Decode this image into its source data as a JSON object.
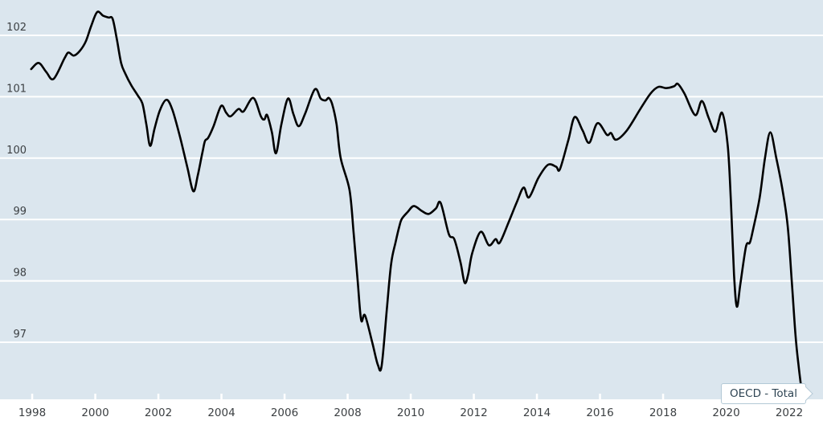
{
  "chart": {
    "colors": {
      "plot_background": "#dbe6ee",
      "outer_background": "#ffffff",
      "gridline": "#ffffff",
      "line": "#000000",
      "axis_text": "#3c4043",
      "callout_border": "#b3c9d6",
      "callout_background": "#ffffff",
      "callout_text": "#2e4453"
    }
  },
  "chart_data": {
    "type": "line",
    "title": "",
    "xlabel": "",
    "ylabel": "",
    "grid": true,
    "legend_position": "callout-bottom-right",
    "x_ticks": [
      1998,
      2000,
      2002,
      2004,
      2006,
      2008,
      2010,
      2012,
      2014,
      2016,
      2018,
      2020,
      2022
    ],
    "y_ticks": [
      97,
      98,
      99,
      100,
      101,
      102
    ],
    "x_range": [
      1996.98,
      2023.07
    ],
    "y_range": [
      96.07,
      102.58
    ],
    "series": [
      {
        "name": "OECD - Total",
        "points": [
          [
            1997.97,
            101.45
          ],
          [
            1998.21,
            101.55
          ],
          [
            1998.45,
            101.4
          ],
          [
            1998.68,
            101.29
          ],
          [
            1999.02,
            101.62
          ],
          [
            1999.15,
            101.72
          ],
          [
            1999.32,
            101.67
          ],
          [
            1999.5,
            101.74
          ],
          [
            1999.7,
            101.9
          ],
          [
            1999.87,
            102.15
          ],
          [
            2000.06,
            102.38
          ],
          [
            2000.25,
            102.32
          ],
          [
            2000.42,
            102.29
          ],
          [
            2000.55,
            102.27
          ],
          [
            2000.68,
            101.95
          ],
          [
            2000.82,
            101.55
          ],
          [
            2000.95,
            101.38
          ],
          [
            2001.15,
            101.18
          ],
          [
            2001.35,
            101.02
          ],
          [
            2001.5,
            100.88
          ],
          [
            2001.62,
            100.55
          ],
          [
            2001.74,
            100.2
          ],
          [
            2001.88,
            100.48
          ],
          [
            2002.05,
            100.78
          ],
          [
            2002.26,
            100.95
          ],
          [
            2002.45,
            100.78
          ],
          [
            2002.7,
            100.32
          ],
          [
            2002.92,
            99.85
          ],
          [
            2003.11,
            99.46
          ],
          [
            2003.25,
            99.72
          ],
          [
            2003.4,
            100.1
          ],
          [
            2003.48,
            100.28
          ],
          [
            2003.58,
            100.33
          ],
          [
            2003.75,
            100.52
          ],
          [
            2003.99,
            100.85
          ],
          [
            2004.15,
            100.74
          ],
          [
            2004.29,
            100.68
          ],
          [
            2004.54,
            100.8
          ],
          [
            2004.7,
            100.76
          ],
          [
            2005.01,
            100.98
          ],
          [
            2005.25,
            100.68
          ],
          [
            2005.36,
            100.63
          ],
          [
            2005.45,
            100.7
          ],
          [
            2005.6,
            100.42
          ],
          [
            2005.73,
            100.08
          ],
          [
            2005.9,
            100.55
          ],
          [
            2006.11,
            100.97
          ],
          [
            2006.28,
            100.72
          ],
          [
            2006.45,
            100.52
          ],
          [
            2006.65,
            100.72
          ],
          [
            2006.96,
            101.12
          ],
          [
            2007.15,
            100.97
          ],
          [
            2007.3,
            100.94
          ],
          [
            2007.4,
            100.98
          ],
          [
            2007.51,
            100.88
          ],
          [
            2007.65,
            100.55
          ],
          [
            2007.78,
            100.0
          ],
          [
            2008.06,
            99.48
          ],
          [
            2008.19,
            98.78
          ],
          [
            2008.32,
            97.99
          ],
          [
            2008.43,
            97.36
          ],
          [
            2008.55,
            97.44
          ],
          [
            2008.78,
            97.0
          ],
          [
            2008.96,
            96.63
          ],
          [
            2009.08,
            96.62
          ],
          [
            2009.25,
            97.58
          ],
          [
            2009.38,
            98.28
          ],
          [
            2009.52,
            98.63
          ],
          [
            2009.64,
            98.89
          ],
          [
            2009.72,
            99.01
          ],
          [
            2009.9,
            99.12
          ],
          [
            2010.1,
            99.22
          ],
          [
            2010.35,
            99.14
          ],
          [
            2010.57,
            99.09
          ],
          [
            2010.8,
            99.18
          ],
          [
            2010.95,
            99.27
          ],
          [
            2011.21,
            98.76
          ],
          [
            2011.38,
            98.68
          ],
          [
            2011.58,
            98.3
          ],
          [
            2011.71,
            97.97
          ],
          [
            2011.82,
            98.1
          ],
          [
            2011.95,
            98.45
          ],
          [
            2012.22,
            98.8
          ],
          [
            2012.48,
            98.58
          ],
          [
            2012.69,
            98.68
          ],
          [
            2012.82,
            98.62
          ],
          [
            2013.1,
            98.95
          ],
          [
            2013.37,
            99.29
          ],
          [
            2013.58,
            99.52
          ],
          [
            2013.75,
            99.36
          ],
          [
            2014.05,
            99.68
          ],
          [
            2014.35,
            99.89
          ],
          [
            2014.61,
            99.86
          ],
          [
            2014.73,
            99.82
          ],
          [
            2015.0,
            100.3
          ],
          [
            2015.2,
            100.67
          ],
          [
            2015.45,
            100.45
          ],
          [
            2015.66,
            100.25
          ],
          [
            2015.92,
            100.57
          ],
          [
            2016.22,
            100.38
          ],
          [
            2016.35,
            100.41
          ],
          [
            2016.51,
            100.3
          ],
          [
            2016.85,
            100.45
          ],
          [
            2017.28,
            100.8
          ],
          [
            2017.6,
            101.05
          ],
          [
            2017.85,
            101.16
          ],
          [
            2018.1,
            101.14
          ],
          [
            2018.35,
            101.17
          ],
          [
            2018.47,
            101.21
          ],
          [
            2018.68,
            101.05
          ],
          [
            2019.02,
            100.7
          ],
          [
            2019.23,
            100.93
          ],
          [
            2019.45,
            100.65
          ],
          [
            2019.66,
            100.43
          ],
          [
            2019.87,
            100.74
          ],
          [
            2020.05,
            100.2
          ],
          [
            2020.15,
            99.3
          ],
          [
            2020.25,
            98.1
          ],
          [
            2020.34,
            97.58
          ],
          [
            2020.45,
            97.95
          ],
          [
            2020.63,
            98.56
          ],
          [
            2020.75,
            98.62
          ],
          [
            2020.85,
            98.83
          ],
          [
            2021.06,
            99.35
          ],
          [
            2021.23,
            100.0
          ],
          [
            2021.4,
            100.42
          ],
          [
            2021.59,
            100.0
          ],
          [
            2021.78,
            99.5
          ],
          [
            2021.95,
            98.9
          ],
          [
            2022.08,
            98.0
          ],
          [
            2022.2,
            97.1
          ],
          [
            2022.3,
            96.6
          ],
          [
            2022.41,
            96.14
          ]
        ]
      }
    ]
  }
}
